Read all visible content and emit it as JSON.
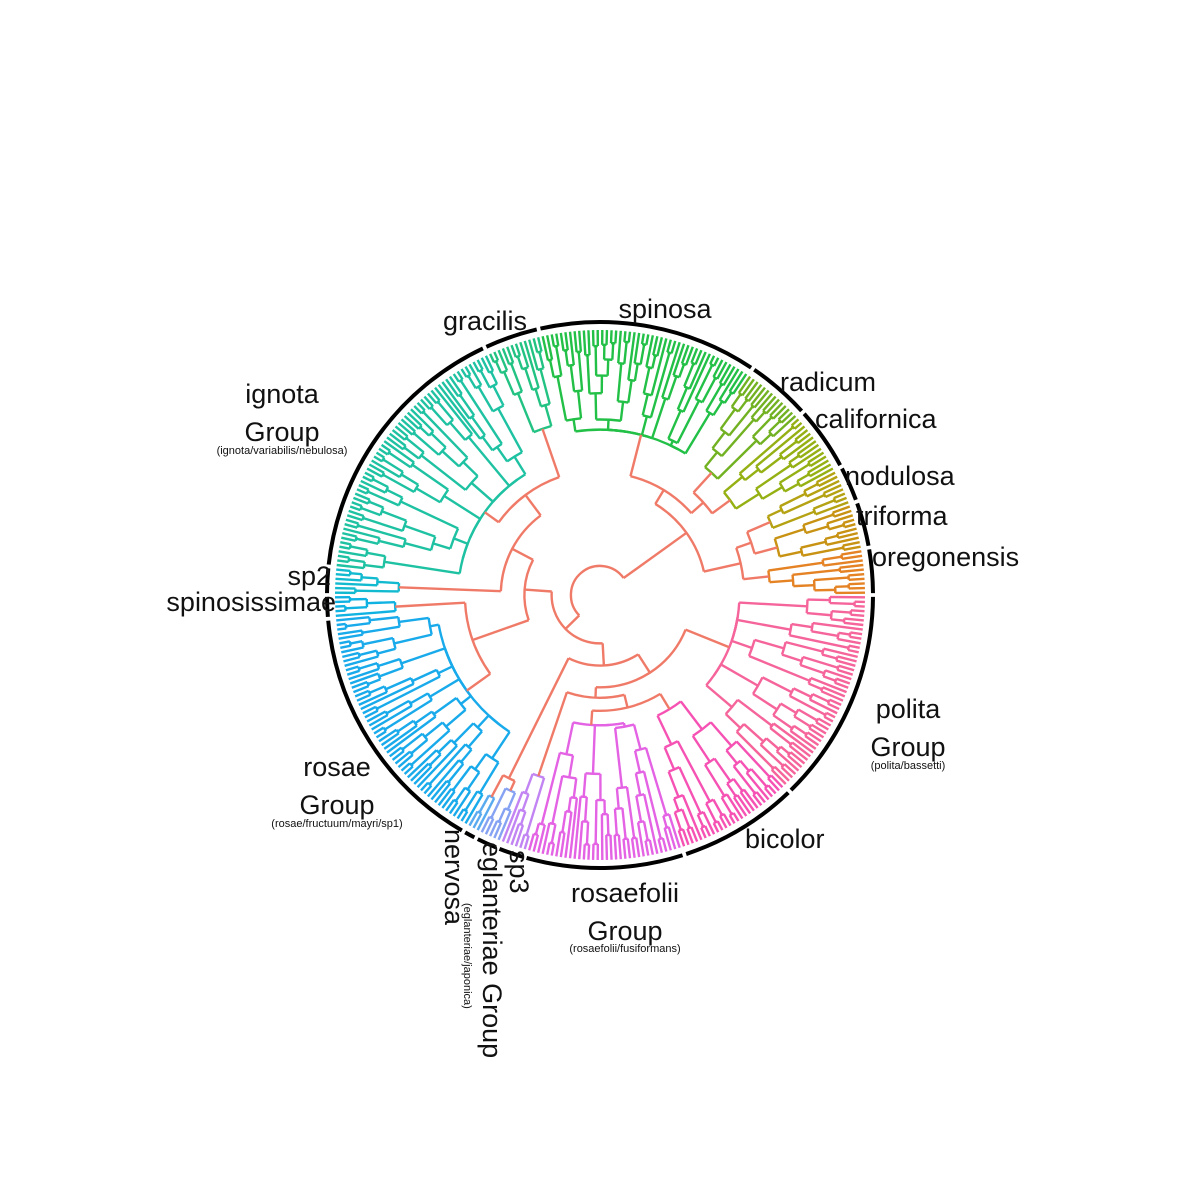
{
  "chart_data": {
    "type": "dendrogram",
    "layout": "circular",
    "backbone_color": "#f07a68",
    "clades": [
      {
        "name": "polita Group",
        "subtitle": "(polita/bassetti)",
        "leaves": 46,
        "color": "#f5649a"
      },
      {
        "name": "bicolor",
        "leaves": 26,
        "color": "#f552b4"
      },
      {
        "name": "rosaefolii Group",
        "subtitle": "(rosaefolii/fusiformans)",
        "leaves": 34,
        "color": "#e462e4"
      },
      {
        "name": "sp3",
        "leaves": 6,
        "color": "#c184f2"
      },
      {
        "name": "eglanteriae Group",
        "subtitle": "(eglanteriae/japonica)",
        "leaves": 5,
        "color": "#86a2f2"
      },
      {
        "name": "nervosa",
        "leaves": 3,
        "color": "#5aaaf0"
      },
      {
        "name": "rosae Group",
        "subtitle": "(rosae/fructuum/mayri/sp1)",
        "leaves": 55,
        "color": "#18aaea"
      },
      {
        "name": "spinosissimae",
        "leaves": 5,
        "color": "#10b2e2"
      },
      {
        "name": "sp2",
        "leaves": 6,
        "color": "#12bad0"
      },
      {
        "name": "ignota Group",
        "subtitle": "(ignota/variabilis/nebulosa)",
        "leaves": 59,
        "color": "#1ec2a2"
      },
      {
        "name": "gracilis",
        "leaves": 12,
        "color": "#22c282"
      },
      {
        "name": "spinosa",
        "leaves": 47,
        "color": "#22c046"
      },
      {
        "name": "radicum",
        "leaves": 14,
        "color": "#72b222"
      },
      {
        "name": "californica",
        "leaves": 14,
        "color": "#94b012"
      },
      {
        "name": "nodulosa",
        "leaves": 8,
        "color": "#b4a212"
      },
      {
        "name": "triforma",
        "leaves": 10,
        "color": "#c89212"
      },
      {
        "name": "oregonensis",
        "leaves": 10,
        "color": "#e48224"
      }
    ]
  }
}
